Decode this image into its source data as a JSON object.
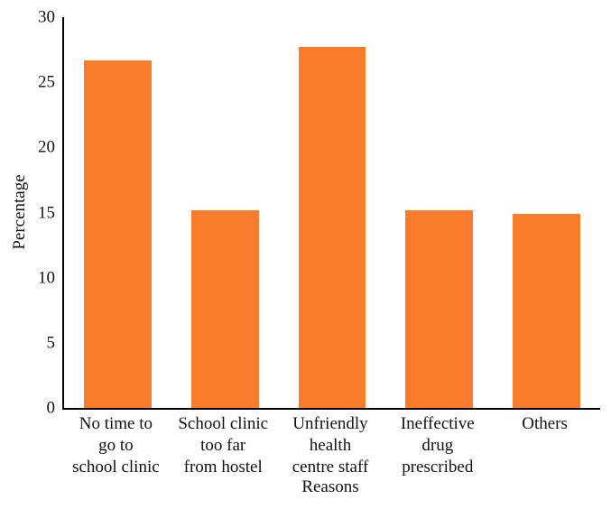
{
  "chart_data": {
    "type": "bar",
    "categories": [
      [
        "No time to",
        "go to",
        "school clinic"
      ],
      [
        "School clinic",
        "too far",
        "from hostel"
      ],
      [
        "Unfriendly",
        "health",
        "centre staff"
      ],
      [
        "Ineffective",
        "drug",
        "prescribed"
      ],
      [
        "Others"
      ]
    ],
    "values": [
      26.7,
      15.2,
      27.7,
      15.2,
      14.9
    ],
    "xlabel": "Reasons",
    "ylabel": "Percentage",
    "ylim": [
      0,
      30
    ],
    "yticks": [
      0,
      5,
      10,
      15,
      20,
      25,
      30
    ],
    "grid": false,
    "legend_position": "none",
    "bar_color": "#fa7c2d",
    "axis_color": "#000000",
    "background_color": "#ffffff",
    "text_color": "#111111"
  }
}
